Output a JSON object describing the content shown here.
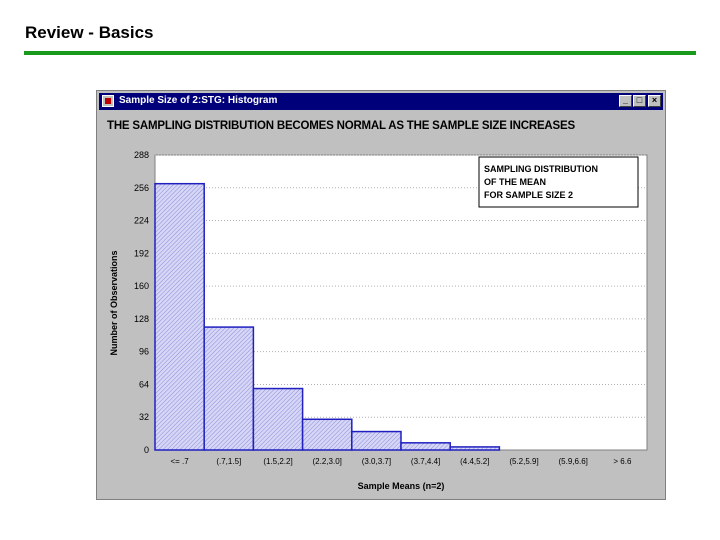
{
  "slide": {
    "title": "Review - Basics"
  },
  "window": {
    "title": "Sample Size of 2:STG: Histogram",
    "minimize_label": "_",
    "maximize_label": "□",
    "close_label": "×"
  },
  "chart_heading": "THE SAMPLING DISTRIBUTION BECOMES NORMAL AS THE SAMPLE SIZE INCREASES",
  "chart_data": {
    "type": "bar",
    "legend_box": [
      "SAMPLING DISTRIBUTION",
      "OF THE MEAN",
      "FOR SAMPLE SIZE 2"
    ],
    "xlabel": "Sample Means (n=2)",
    "ylabel": "Number of Observations",
    "ylim": [
      0,
      288
    ],
    "yticks": [
      0,
      32,
      64,
      96,
      128,
      160,
      192,
      224,
      256,
      288
    ],
    "categories": [
      "<= .7",
      "(.7,1.5]",
      "(1.5,2.2]",
      "(2.2,3.0]",
      "(3.0,3.7]",
      "(3.7,4.4]",
      "(4.4,5.2]",
      "(5.2,5.9]",
      "(5.9,6.6]",
      "> 6.6"
    ],
    "values": [
      260,
      120,
      60,
      30,
      18,
      7,
      3,
      0,
      0,
      0
    ],
    "grid": true,
    "bar_color": "#c8c8f0",
    "bar_edge": "#2020c0"
  }
}
